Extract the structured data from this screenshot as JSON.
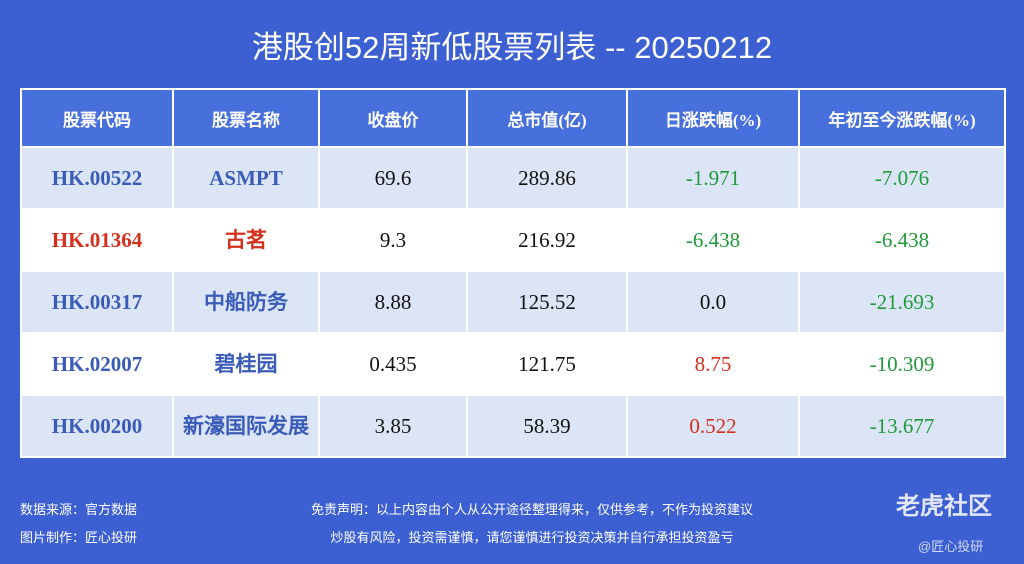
{
  "header": {
    "title": "港股创52周新低股票列表 -- 20250212"
  },
  "table": {
    "columns": [
      "股票代码",
      "股票名称",
      "收盘价",
      "总市值(亿)",
      "日涨跌幅(%)",
      "年初至今涨跌幅(%)"
    ],
    "rows": [
      [
        "HK.00522",
        "ASMPT",
        "69.6",
        "289.86",
        "-1.971",
        "-7.076"
      ],
      [
        "HK.01364",
        "古茗",
        "9.3",
        "216.92",
        "-6.438",
        "-6.438"
      ],
      [
        "HK.00317",
        "中船防务",
        "8.88",
        "125.52",
        "0.0",
        "-21.693"
      ],
      [
        "HK.02007",
        "碧桂园",
        "0.435",
        "121.75",
        "8.75",
        "-10.309"
      ],
      [
        "HK.00200",
        "新濠国际发展",
        "3.85",
        "58.39",
        "0.522",
        "-13.677"
      ]
    ],
    "code_colors": [
      "#3a5cb8",
      "#d4301e",
      "#3a5cb8",
      "#3a5cb8",
      "#3a5cb8"
    ],
    "up_color": "#d4301e",
    "down_color": "#1f9a3a",
    "flat_color": "#111111"
  },
  "footer": {
    "source": "数据来源：官方数据",
    "author": "图片制作：匠心投研",
    "disclaimer": [
      "免责声明：以上内容由个人从公开途径整理得来，仅供参考，不作为投资建议",
      "炒股有风险，投资需谨慎，请您谨慎进行投资决策并自行承担投资盈亏"
    ],
    "watermark": "老虎社区",
    "watermark_user": "@匠心投研"
  }
}
